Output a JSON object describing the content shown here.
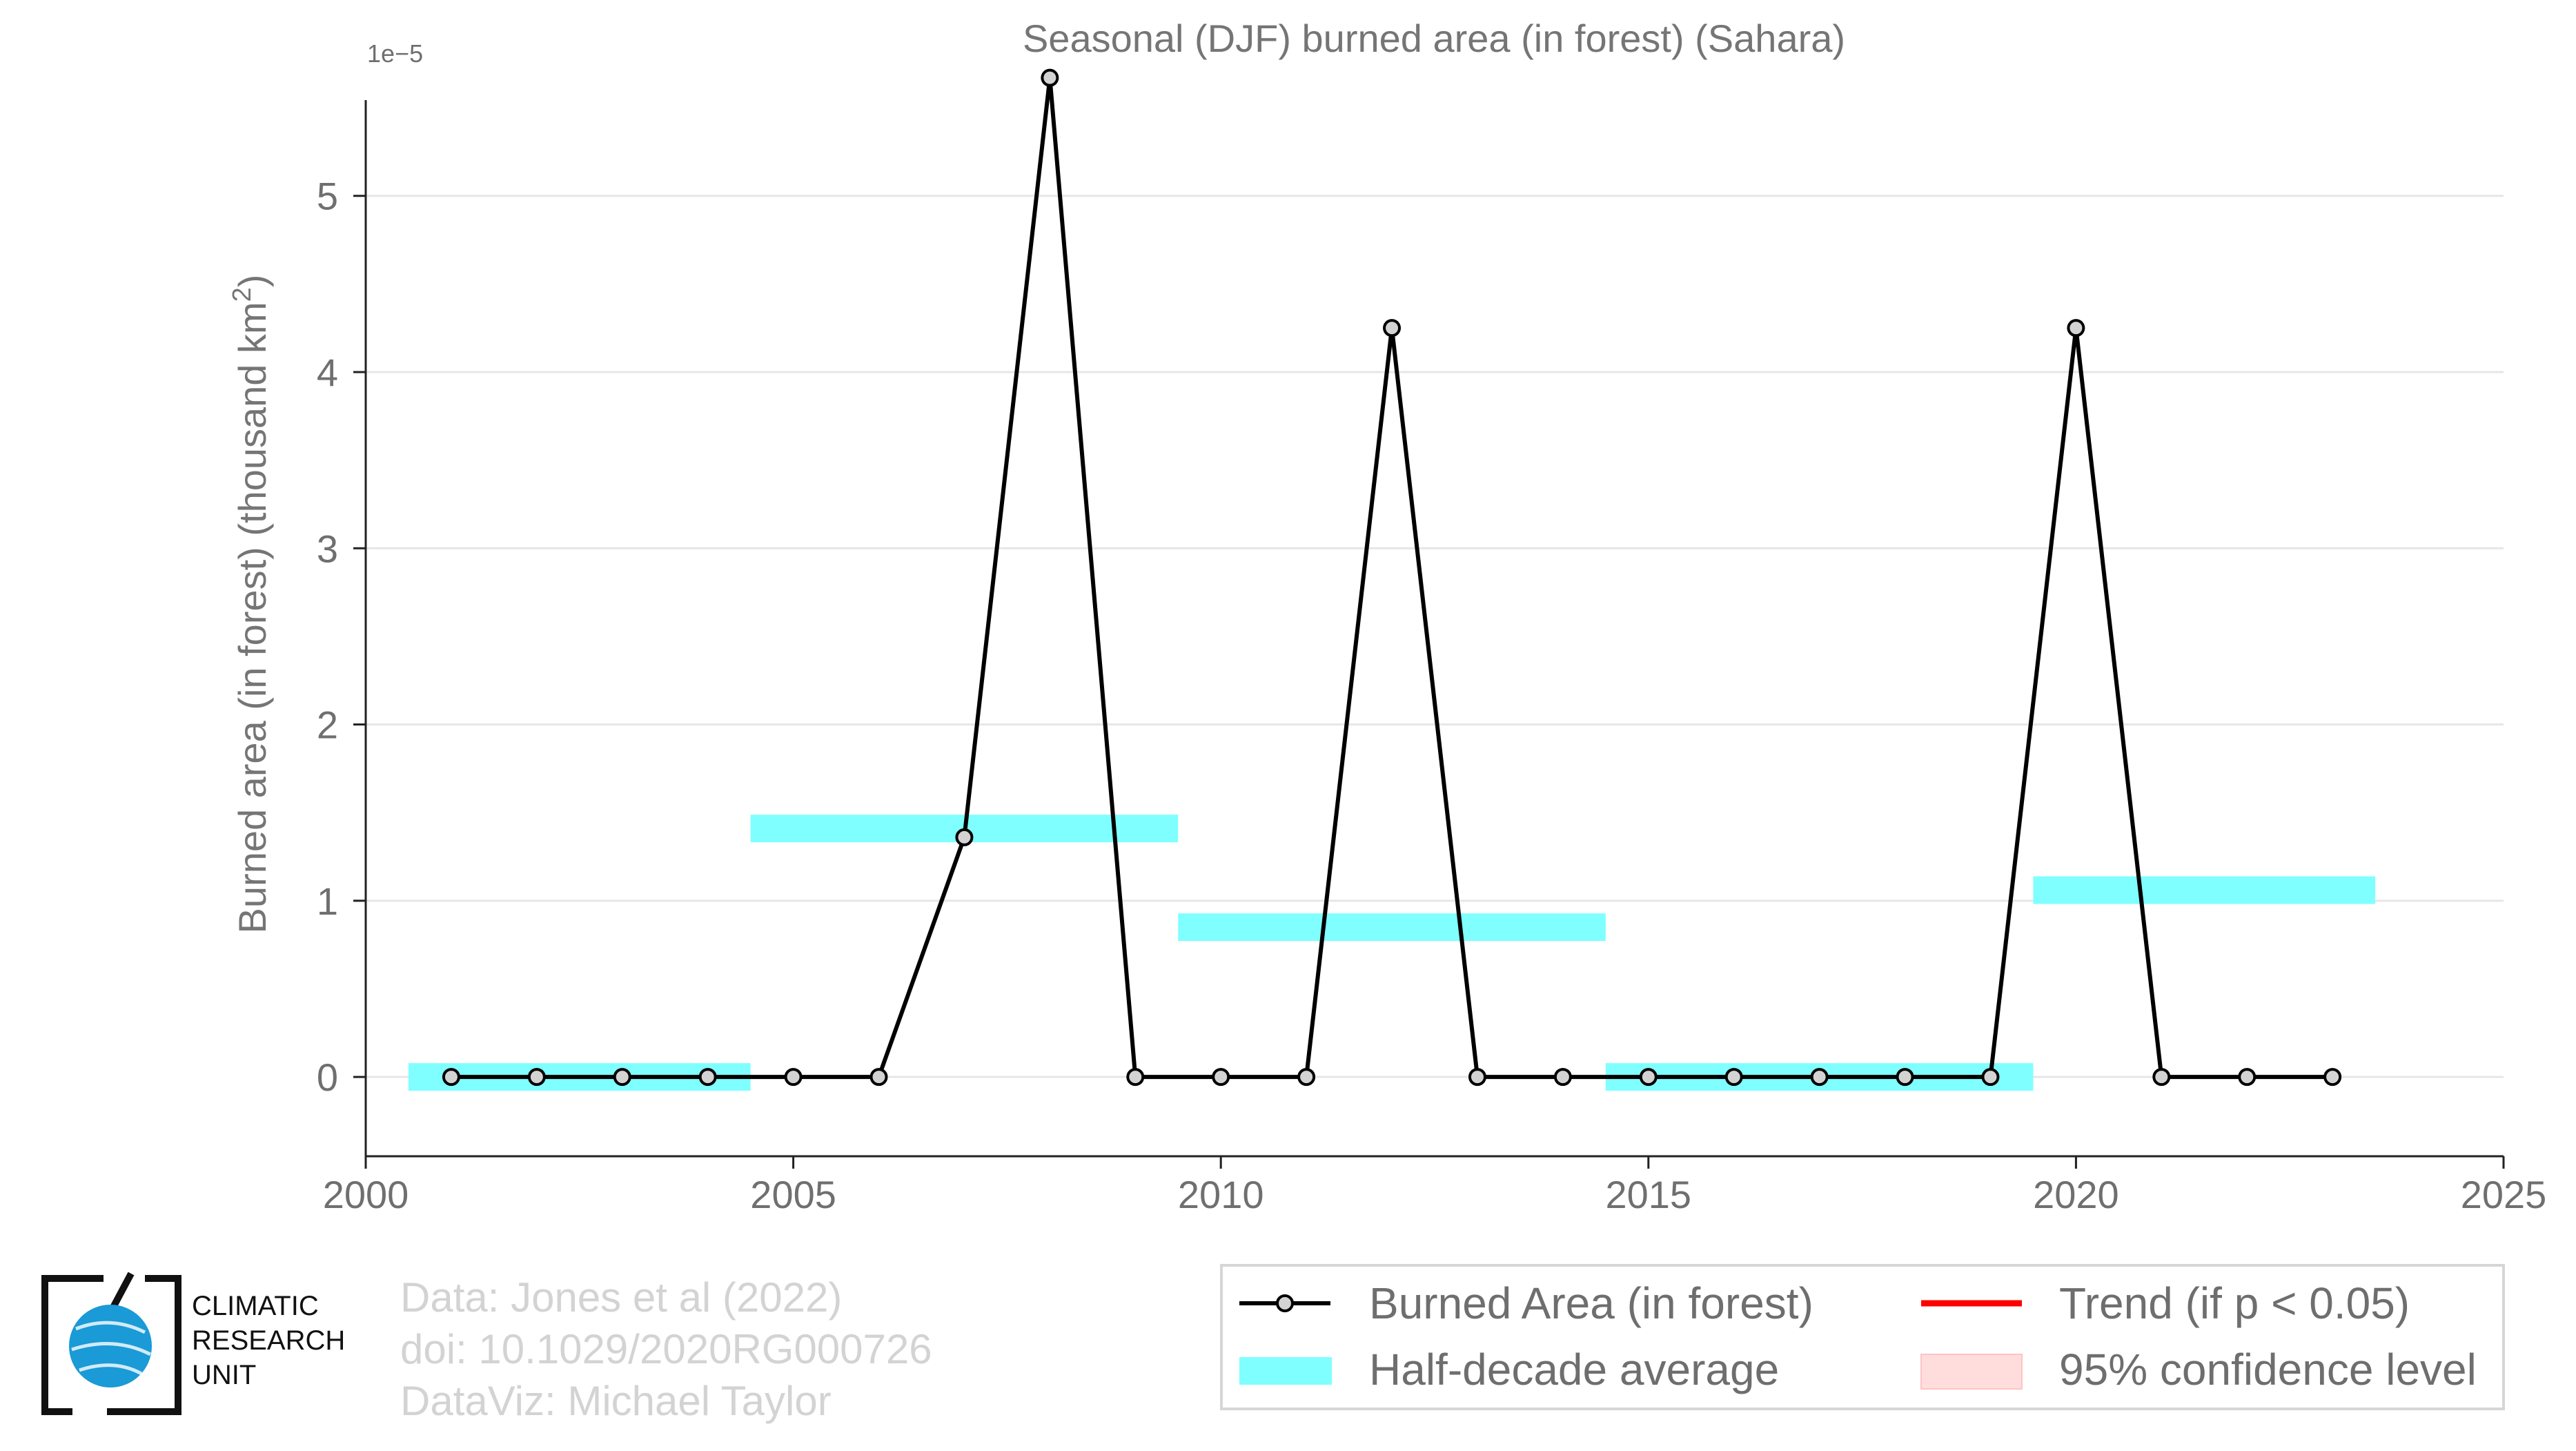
{
  "chart_data": {
    "type": "line",
    "title": "Seasonal (DJF) burned area (in forest) (Sahara)",
    "ylabel": "Burned area (in forest) (thousand km",
    "ylabel_superscript": "2",
    "ylabel_close": ")",
    "y_scale_label": "1e−5",
    "xlim": [
      2000,
      2025
    ],
    "ylim": [
      -0.45,
      5.7
    ],
    "x_ticks": [
      2000,
      2005,
      2010,
      2015,
      2020,
      2025
    ],
    "y_ticks": [
      0,
      1,
      2,
      3,
      4,
      5
    ],
    "grid": true,
    "series": [
      {
        "name": "Burned Area (in forest)",
        "color": "#000000",
        "marker_fill": "#d3d3d3",
        "x": [
          2001,
          2002,
          2003,
          2004,
          2005,
          2006,
          2007,
          2008,
          2009,
          2010,
          2011,
          2012,
          2013,
          2014,
          2015,
          2016,
          2017,
          2018,
          2019,
          2020,
          2021,
          2022,
          2023
        ],
        "y": [
          0,
          0,
          0,
          0,
          0,
          0,
          1.36,
          5.67,
          0,
          0,
          0,
          4.25,
          0,
          0,
          0,
          0,
          0,
          0,
          0,
          4.25,
          0,
          0,
          0
        ]
      }
    ],
    "half_decade_averages": {
      "name": "Half-decade average",
      "color": "#7fffff",
      "segments": [
        {
          "x0": 2000.5,
          "x1": 2004.5,
          "y": 0
        },
        {
          "x0": 2004.5,
          "x1": 2009.5,
          "y": 1.41
        },
        {
          "x0": 2009.5,
          "x1": 2014.5,
          "y": 0.85
        },
        {
          "x0": 2014.5,
          "x1": 2019.5,
          "y": 0
        },
        {
          "x0": 2019.5,
          "x1": 2023.5,
          "y": 1.06
        }
      ]
    },
    "legend": {
      "placement": "bottom-right",
      "items": [
        {
          "label": "Burned Area (in forest)",
          "kind": "line-marker",
          "color": "#000000"
        },
        {
          "label": "Trend (if p < 0.05)",
          "kind": "line",
          "color": "#ff0000"
        },
        {
          "label": "Half-decade average",
          "kind": "band",
          "color": "#7fffff"
        },
        {
          "label": "95% confidence level",
          "kind": "patch",
          "color": "#ffdddd"
        }
      ]
    }
  },
  "credits": {
    "line1": "Data: Jones et al (2022)",
    "line2": "doi: 10.1029/2020RG000726",
    "line3": "DataViz: Michael Taylor"
  },
  "logo": {
    "line1": "CLIMATIC",
    "line2": "RESEARCH",
    "line3": "UNIT",
    "accent": "#1a9ad6"
  }
}
